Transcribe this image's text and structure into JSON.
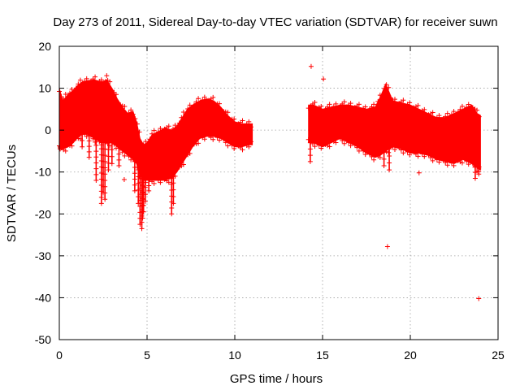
{
  "chart_data": {
    "type": "scatter",
    "title": "Day 273 of 2011, Sidereal Day-to-day VTEC variation (SDTVAR) for receiver suwn",
    "xlabel": "GPS time / hours",
    "ylabel": "SDTVAR / TECUs",
    "xlim": [
      0,
      25
    ],
    "ylim": [
      -50,
      20
    ],
    "xticks": [
      0,
      5,
      10,
      15,
      20,
      25
    ],
    "yticks": [
      -50,
      -40,
      -30,
      -20,
      -10,
      0,
      10,
      20
    ],
    "grid": true,
    "marker": "+",
    "color": "#ff0000",
    "series": [
      {
        "name": "SDTVAR band segment 1",
        "style": "band",
        "x": [
          0.0,
          0.2,
          0.5,
          0.8,
          1.0,
          1.3,
          1.6,
          2.0,
          2.4,
          2.7,
          3.0,
          3.3,
          3.6,
          3.9,
          4.2,
          4.4,
          4.6,
          4.8,
          5.0,
          5.3,
          5.6,
          6.0,
          6.4,
          6.7,
          7.0,
          7.3,
          7.6,
          8.0,
          8.4,
          8.8,
          9.2,
          9.6,
          10.0,
          10.4,
          10.8,
          11.0
        ],
        "upper": [
          10.0,
          7.0,
          8.5,
          9.5,
          10.5,
          11.5,
          11.8,
          12.0,
          11.5,
          12.0,
          10.0,
          7.5,
          5.5,
          4.0,
          4.5,
          2.0,
          -2.0,
          -3.5,
          -3.0,
          -1.0,
          -0.5,
          0.5,
          0.0,
          1.0,
          3.0,
          5.0,
          6.0,
          7.0,
          7.5,
          7.0,
          5.5,
          3.5,
          2.0,
          1.5,
          1.5,
          1.5
        ],
        "lower": [
          -4.5,
          -4.5,
          -4.0,
          -3.0,
          -2.0,
          -1.0,
          -1.0,
          -2.0,
          -3.0,
          -3.0,
          -3.0,
          -4.0,
          -5.0,
          -6.0,
          -7.0,
          -8.0,
          -11.0,
          -12.0,
          -12.0,
          -12.0,
          -12.0,
          -12.0,
          -11.5,
          -10.0,
          -8.0,
          -6.0,
          -4.0,
          -2.0,
          -1.5,
          -1.5,
          -2.0,
          -3.0,
          -4.0,
          -4.0,
          -3.5,
          -3.5
        ]
      },
      {
        "name": "SDTVAR band segment 2",
        "style": "band",
        "x": [
          14.2,
          14.5,
          15.0,
          15.5,
          16.0,
          16.5,
          17.0,
          17.5,
          18.0,
          18.3,
          18.6,
          18.8,
          19.0,
          19.5,
          20.0,
          20.5,
          21.0,
          21.5,
          22.0,
          22.5,
          23.0,
          23.5,
          23.8,
          24.0
        ],
        "upper": [
          6.0,
          6.0,
          5.0,
          5.5,
          6.0,
          6.0,
          5.5,
          5.0,
          5.5,
          8.0,
          11.0,
          9.0,
          7.0,
          6.5,
          6.0,
          5.0,
          4.0,
          3.0,
          3.0,
          4.0,
          5.0,
          6.0,
          4.0,
          3.5
        ],
        "lower": [
          -3.0,
          -3.0,
          -4.0,
          -3.0,
          -2.0,
          -3.0,
          -4.0,
          -5.5,
          -6.5,
          -6.0,
          -5.0,
          -4.5,
          -4.0,
          -4.5,
          -5.5,
          -5.5,
          -6.0,
          -7.0,
          -7.5,
          -8.0,
          -7.0,
          -8.0,
          -9.0,
          -9.5
        ]
      },
      {
        "name": "SDTVAR downward spikes",
        "style": "spikes",
        "x": [
          0.05,
          1.3,
          1.7,
          2.1,
          2.4,
          2.5,
          2.6,
          2.8,
          3.0,
          3.4,
          4.3,
          4.5,
          4.6,
          4.7,
          4.75,
          4.8,
          4.9,
          5.1,
          6.4,
          6.5,
          14.3,
          18.5,
          18.8,
          23.7,
          23.9
        ],
        "y": [
          -4.0,
          -4.0,
          -6.5,
          -12.0,
          -17.5,
          -15.0,
          -16.5,
          -9.5,
          -8.0,
          -8.5,
          -14.5,
          -17.5,
          -22.5,
          -23.5,
          -21.0,
          -19.5,
          -17.0,
          -14.5,
          -20.0,
          -17.5,
          -7.5,
          -8.5,
          -9.5,
          -11.5,
          -10.5
        ]
      },
      {
        "name": "SDTVAR outliers",
        "style": "points",
        "x": [
          14.35,
          15.05,
          18.7,
          20.5,
          23.9,
          2.7,
          3.7
        ],
        "y": [
          15.2,
          12.2,
          -27.8,
          -10.2,
          -40.2,
          13.0,
          -11.8
        ]
      }
    ]
  }
}
